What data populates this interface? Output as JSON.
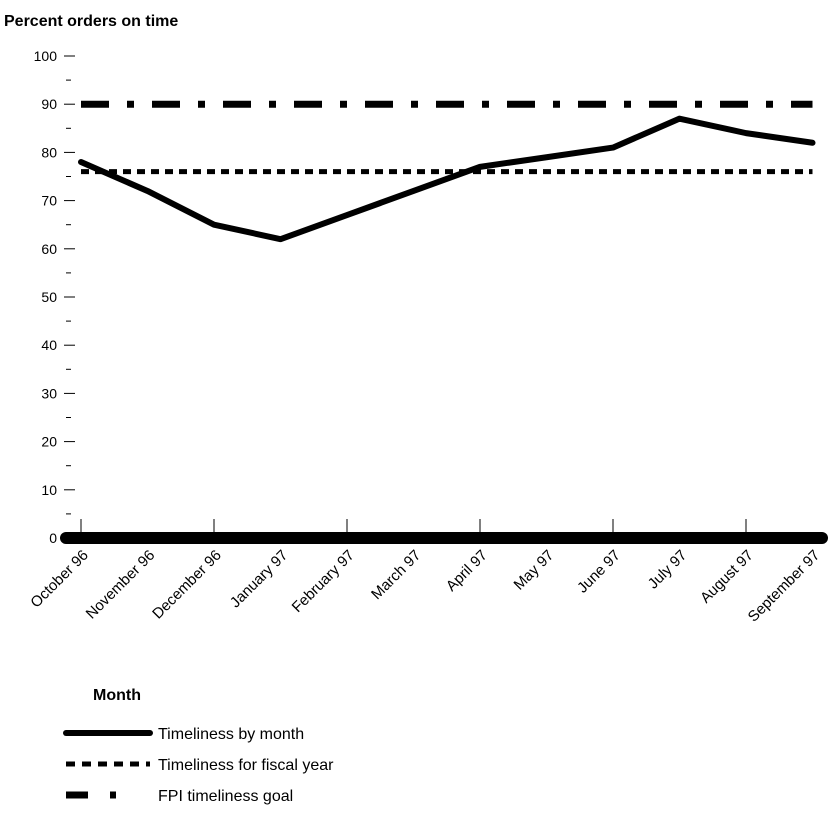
{
  "chart_data": {
    "type": "line",
    "ylabel": "Percent orders on time",
    "xlabel": "Month",
    "categories": [
      "October 96",
      "November 96",
      "December 96",
      "January 97",
      "February 97",
      "March 97",
      "April 97",
      "May 97",
      "June 97",
      "July 97",
      "August 97",
      "September 97"
    ],
    "ylim": [
      0,
      100
    ],
    "yticks": [
      0,
      10,
      20,
      30,
      40,
      50,
      60,
      70,
      80,
      90,
      100
    ],
    "minor_tick_step": 5,
    "grid": false,
    "legend_position": "bottom-left",
    "series": [
      {
        "name": "Timeliness by month",
        "style": "solid",
        "color": "#000000",
        "values": [
          78,
          72,
          65,
          62,
          67,
          72,
          77,
          79,
          81,
          87,
          84,
          82
        ]
      },
      {
        "name": "Timeliness for fiscal year",
        "style": "dotted",
        "color": "#000000",
        "values": [
          76,
          76,
          76,
          76,
          76,
          76,
          76,
          76,
          76,
          76,
          76,
          76
        ]
      },
      {
        "name": "FPI timeliness goal",
        "style": "dash-dot",
        "color": "#000000",
        "values": [
          90,
          90,
          90,
          90,
          90,
          90,
          90,
          90,
          90,
          90,
          90,
          90
        ]
      }
    ]
  }
}
